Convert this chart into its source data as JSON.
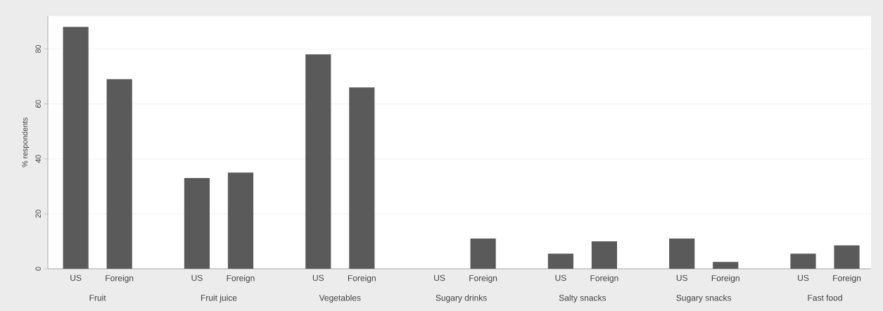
{
  "chart_data": {
    "type": "bar",
    "ylabel": "% respondents",
    "categories": [
      "Fruit",
      "Fruit juice",
      "Vegetables",
      "Sugary drinks",
      "Salty snacks",
      "Sugary snacks",
      "Fast food"
    ],
    "series": [
      {
        "name": "US",
        "color": "#5a5a5a",
        "values": [
          88,
          33,
          78,
          0,
          5.5,
          11,
          5.5
        ]
      },
      {
        "name": "Foreign",
        "color": "#5a5a5a",
        "values": [
          69,
          35,
          66,
          11,
          10,
          2.5,
          8.5
        ]
      }
    ],
    "ylim": [
      0,
      92
    ],
    "yticks": [
      0,
      20,
      40,
      60,
      80
    ],
    "grid": "y"
  }
}
